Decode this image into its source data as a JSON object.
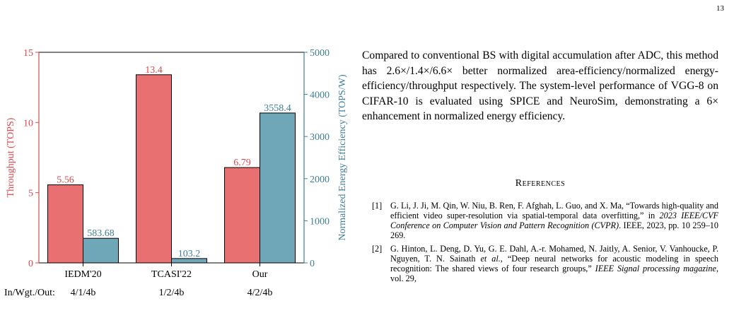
{
  "page": {
    "number": "13"
  },
  "chart_data": {
    "type": "bar",
    "categories": [
      "IEDM'20",
      "TCASI'22",
      "Our"
    ],
    "precision": [
      "4/1/4b",
      "1/2/4b",
      "4/2/4b"
    ],
    "row_label": "In/Wgt./Out:",
    "ylabel_left": "Throughput (TOPS)",
    "ylabel_right": "Normalized Energy Efficiency (TOPS/W)",
    "ylim_left": [
      0,
      15
    ],
    "ylim_right": [
      0,
      5000
    ],
    "left_ticks": [
      0,
      5,
      10,
      15
    ],
    "right_ticks": [
      0,
      1000,
      2000,
      3000,
      4000,
      5000
    ],
    "colors": {
      "throughput": "#e87070",
      "efficiency": "#6fa6b8",
      "left_axis": "#e0474c",
      "right_axis": "#3f7f96"
    },
    "series": [
      {
        "values": [
          5.56,
          13.4,
          6.79
        ],
        "labels": [
          "5.56",
          "13.4",
          "6.79"
        ],
        "axis": "left"
      },
      {
        "values": [
          583.68,
          103.2,
          3558.4
        ],
        "labels": [
          "583.68",
          "103.2",
          "3558.4"
        ],
        "axis": "right"
      }
    ]
  },
  "paragraph": "Compared to conventional BS with digital accumulation after ADC, this method has 2.6×/1.4×/6.6× better normalized area-efficiency/normalized energy-efficiency/throughput respectively. The system-level performance of VGG-8 on CIFAR-10 is evaluated using SPICE and NeuroSim, demonstrating a 6× enhancement in normalized energy efficiency.",
  "references": {
    "heading": "References",
    "items": [
      {
        "number": "[1]",
        "before": "G. Li, J. Ji, M. Qin, W. Niu, B. Ren, F. Afghah, L. Guo, and X. Ma, “Towards high-quality and efficient video super-resolution via spatial-temporal data overfitting,” in ",
        "venue": "2023 IEEE/CVF Conference on Computer Vision and Pattern Recognition (CVPR)",
        "after": ". IEEE, 2023, pp. 10 259–10 269."
      },
      {
        "number": "[2]",
        "before": "G. Hinton, L. Deng, D. Yu, G. E. Dahl, A.-r. Mohamed, N. Jaitly, A. Senior, V. Vanhoucke, P. Nguyen, T. N. Sainath ",
        "etal": "et al.",
        "middle": ", “Deep neural networks for acoustic modeling in speech recognition: The shared views of four research groups,” ",
        "venue": "IEEE Signal processing magazine",
        "after": ", vol. 29,"
      }
    ]
  }
}
